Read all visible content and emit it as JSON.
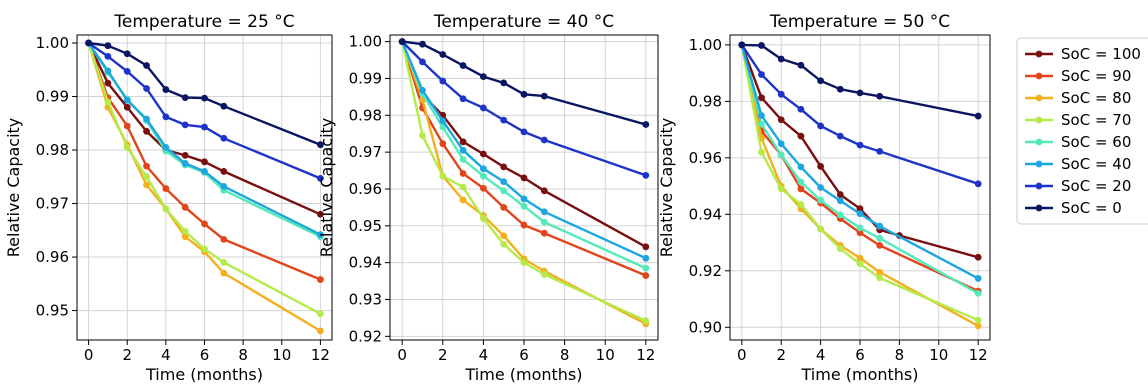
{
  "chart_data": [
    {
      "type": "line",
      "title": "Temperature = 25 °C",
      "xlabel": "Time (months)",
      "ylabel": "Relative Capacity",
      "xlim": [
        -0.6,
        12.6
      ],
      "ylim": [
        0.9445,
        1.0015
      ],
      "xticks": [
        0,
        2,
        4,
        6,
        8,
        10,
        12
      ],
      "xtick_labels": [
        "0",
        "2",
        "4",
        "6",
        "8",
        "10",
        "12"
      ],
      "yticks": [
        0.95,
        0.96,
        0.97,
        0.98,
        0.99,
        1.0
      ],
      "ytick_labels": [
        "0.95",
        "0.96",
        "0.97",
        "0.98",
        "0.99",
        "1.00"
      ],
      "grid": true,
      "x": [
        0,
        1,
        2,
        3,
        4,
        5,
        6,
        7,
        12
      ],
      "series": [
        {
          "name": "SoC = 100",
          "color": "#7a0f0f",
          "values": [
            1.0,
            0.9925,
            0.988,
            0.9835,
            0.98,
            0.979,
            0.9778,
            0.976,
            0.968
          ]
        },
        {
          "name": "SoC = 90",
          "color": "#e0451c",
          "values": [
            1.0,
            0.9898,
            0.9845,
            0.977,
            0.9728,
            0.9693,
            0.9662,
            0.9633,
            0.9558
          ]
        },
        {
          "name": "SoC = 80",
          "color": "#f2b01e",
          "values": [
            1.0,
            0.988,
            0.981,
            0.9735,
            0.969,
            0.9638,
            0.961,
            0.957,
            0.9462
          ]
        },
        {
          "name": "SoC = 70",
          "color": "#b5ea4a",
          "values": [
            1.0,
            0.989,
            0.9805,
            0.975,
            0.969,
            0.9648,
            0.9615,
            0.959,
            0.9494
          ]
        },
        {
          "name": "SoC = 60",
          "color": "#55e8bb",
          "values": [
            1.0,
            0.9945,
            0.9895,
            0.9855,
            0.9798,
            0.9772,
            0.9758,
            0.9725,
            0.9638
          ]
        },
        {
          "name": "SoC = 40",
          "color": "#1ea6e0",
          "values": [
            1.0,
            0.9948,
            0.9893,
            0.9858,
            0.9805,
            0.9775,
            0.976,
            0.9732,
            0.9642
          ]
        },
        {
          "name": "SoC = 20",
          "color": "#1e34c8",
          "values": [
            1.0,
            0.9975,
            0.9947,
            0.9915,
            0.9862,
            0.9847,
            0.9843,
            0.9822,
            0.9747
          ]
        },
        {
          "name": "SoC = 0",
          "color": "#0b1662",
          "values": [
            1.0,
            0.9995,
            0.998,
            0.9958,
            0.9913,
            0.9898,
            0.9897,
            0.9882,
            0.981
          ]
        }
      ]
    },
    {
      "type": "line",
      "title": "Temperature = 40 °C",
      "xlabel": "Time (months)",
      "ylabel": "Relative Capacity",
      "xlim": [
        -0.6,
        12.6
      ],
      "ylim": [
        0.919,
        1.0018
      ],
      "xticks": [
        0,
        2,
        4,
        6,
        8,
        10,
        12
      ],
      "xtick_labels": [
        "0",
        "2",
        "4",
        "6",
        "8",
        "10",
        "12"
      ],
      "yticks": [
        0.92,
        0.93,
        0.94,
        0.95,
        0.96,
        0.97,
        0.98,
        0.99,
        1.0
      ],
      "ytick_labels": [
        "0.92",
        "0.93",
        "0.94",
        "0.95",
        "0.96",
        "0.97",
        "0.98",
        "0.99",
        "1.00"
      ],
      "grid": true,
      "x": [
        0,
        1,
        2,
        3,
        4,
        5,
        6,
        7,
        12
      ],
      "series": [
        {
          "name": "SoC = 100",
          "color": "#7a0f0f",
          "values": [
            1.0,
            0.9855,
            0.98,
            0.9728,
            0.9695,
            0.966,
            0.963,
            0.9595,
            0.9443
          ]
        },
        {
          "name": "SoC = 90",
          "color": "#e0451c",
          "values": [
            1.0,
            0.982,
            0.9723,
            0.9642,
            0.9602,
            0.955,
            0.9502,
            0.948,
            0.9365
          ]
        },
        {
          "name": "SoC = 80",
          "color": "#f2b01e",
          "values": [
            1.0,
            0.9842,
            0.9635,
            0.957,
            0.9528,
            0.9473,
            0.941,
            0.9377,
            0.9234
          ]
        },
        {
          "name": "SoC = 70",
          "color": "#b5ea4a",
          "values": [
            1.0,
            0.9745,
            0.9635,
            0.9605,
            0.952,
            0.945,
            0.94,
            0.9368,
            0.9242
          ]
        },
        {
          "name": "SoC = 60",
          "color": "#55e8bb",
          "values": [
            1.0,
            0.9858,
            0.9768,
            0.968,
            0.9635,
            0.9595,
            0.9553,
            0.951,
            0.9385
          ]
        },
        {
          "name": "SoC = 40",
          "color": "#1ea6e0",
          "values": [
            1.0,
            0.9868,
            0.9785,
            0.9705,
            0.9655,
            0.962,
            0.9573,
            0.9538,
            0.9412
          ]
        },
        {
          "name": "SoC = 20",
          "color": "#1e34c8",
          "values": [
            1.0,
            0.9945,
            0.9893,
            0.9845,
            0.982,
            0.9787,
            0.9755,
            0.9733,
            0.9637
          ]
        },
        {
          "name": "SoC = 0",
          "color": "#0b1662",
          "values": [
            1.0,
            0.9993,
            0.9965,
            0.9935,
            0.9905,
            0.9888,
            0.9857,
            0.9852,
            0.9775
          ]
        }
      ]
    },
    {
      "type": "line",
      "title": "Temperature = 50 °C",
      "xlabel": "Time (months)",
      "ylabel": "Relative Capacity",
      "xlim": [
        -0.6,
        12.6
      ],
      "ylim": [
        0.8955,
        1.0035
      ],
      "xticks": [
        0,
        2,
        4,
        6,
        8,
        10,
        12
      ],
      "xtick_labels": [
        "0",
        "2",
        "4",
        "6",
        "8",
        "10",
        "12"
      ],
      "yticks": [
        0.9,
        0.92,
        0.94,
        0.96,
        0.98,
        1.0
      ],
      "ytick_labels": [
        "0.90",
        "0.92",
        "0.94",
        "0.96",
        "0.98",
        "1.00"
      ],
      "grid": true,
      "x": [
        0,
        1,
        2,
        3,
        4,
        5,
        6,
        7,
        8,
        12
      ],
      "series": [
        {
          "name": "SoC = 100",
          "color": "#7a0f0f",
          "values": [
            1.0,
            0.9813,
            0.9735,
            0.9677,
            0.957,
            0.947,
            0.942,
            0.9345,
            0.9325,
            0.9248
          ]
        },
        {
          "name": "SoC = 90",
          "color": "#e0451c",
          "values": [
            1.0,
            0.9695,
            0.961,
            0.949,
            0.944,
            0.9385,
            0.9335,
            0.929,
            null,
            0.9128
          ]
        },
        {
          "name": "SoC = 80",
          "color": "#f2b01e",
          "values": [
            1.0,
            0.967,
            0.95,
            0.942,
            0.9348,
            0.929,
            0.9245,
            0.9195,
            null,
            0.9005
          ]
        },
        {
          "name": "SoC = 70",
          "color": "#b5ea4a",
          "values": [
            1.0,
            0.962,
            0.949,
            0.9435,
            0.9348,
            0.9278,
            0.9225,
            0.9175,
            null,
            0.9025
          ]
        },
        {
          "name": "SoC = 60",
          "color": "#55e8bb",
          "values": [
            1.0,
            0.972,
            0.961,
            0.9515,
            0.945,
            0.9398,
            0.9352,
            0.9315,
            null,
            0.912
          ]
        },
        {
          "name": "SoC = 40",
          "color": "#1ea6e0",
          "values": [
            1.0,
            0.975,
            0.965,
            0.9568,
            0.9495,
            0.9448,
            0.9402,
            0.9358,
            null,
            0.9173
          ]
        },
        {
          "name": "SoC = 20",
          "color": "#1e34c8",
          "values": [
            1.0,
            0.9895,
            0.9825,
            0.9772,
            0.9713,
            0.9677,
            0.9645,
            0.9623,
            null,
            0.9508
          ]
        },
        {
          "name": "SoC = 0",
          "color": "#0b1662",
          "values": [
            1.0,
            0.9998,
            0.995,
            0.9928,
            0.9873,
            0.9843,
            0.983,
            0.9818,
            null,
            0.9748
          ]
        }
      ]
    }
  ],
  "legend": {
    "placement": "right",
    "entries": [
      {
        "label": "SoC = 100",
        "color": "#7a0f0f"
      },
      {
        "label": "SoC = 90",
        "color": "#e0451c"
      },
      {
        "label": "SoC = 80",
        "color": "#f2b01e"
      },
      {
        "label": "SoC = 70",
        "color": "#b5ea4a"
      },
      {
        "label": "SoC = 60",
        "color": "#55e8bb"
      },
      {
        "label": "SoC = 40",
        "color": "#1ea6e0"
      },
      {
        "label": "SoC = 20",
        "color": "#1e34c8"
      },
      {
        "label": "SoC = 0",
        "color": "#0b1662"
      }
    ]
  }
}
